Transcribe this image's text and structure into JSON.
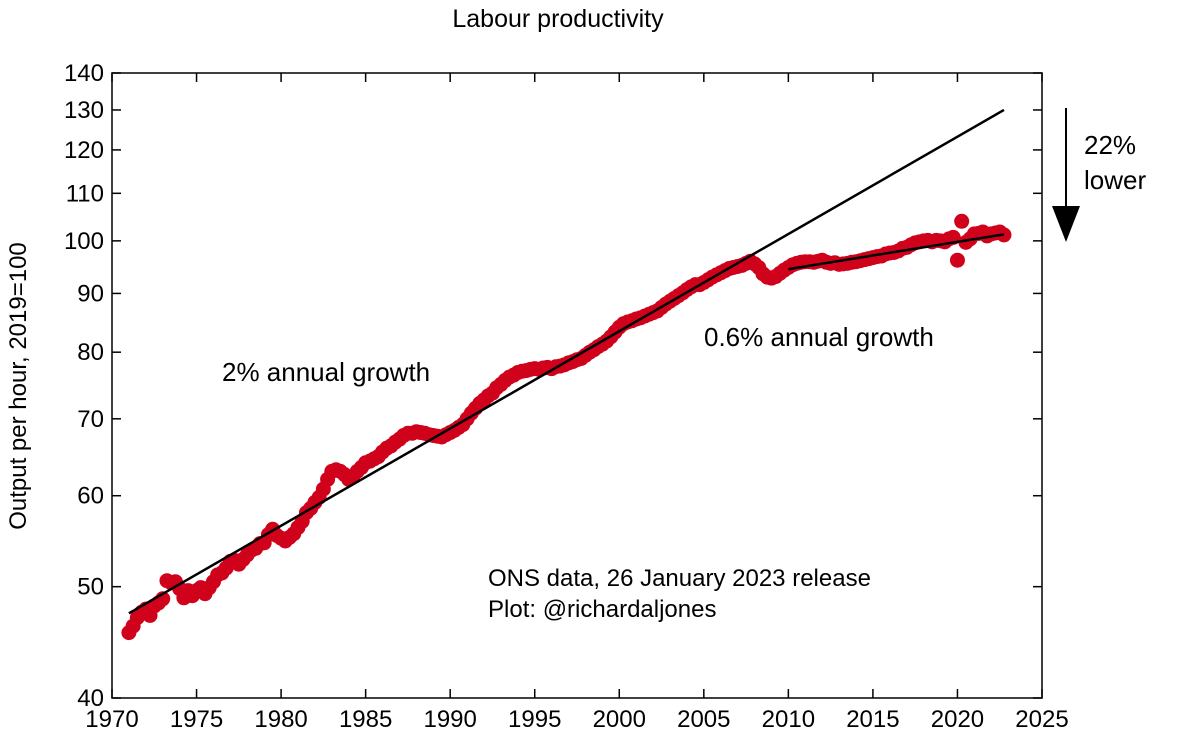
{
  "chart_data": {
    "type": "scatter",
    "title": "Labour productivity",
    "xlabel": "",
    "ylabel": "Output per hour, 2019=100",
    "y_scale": "log",
    "xlim": [
      1970,
      2025
    ],
    "ylim": [
      40,
      140
    ],
    "x_ticks": [
      1970,
      1975,
      1980,
      1985,
      1990,
      1995,
      2000,
      2005,
      2010,
      2015,
      2020,
      2025
    ],
    "y_ticks": [
      40,
      50,
      60,
      70,
      80,
      90,
      100,
      110,
      120,
      130,
      140
    ],
    "grid": false,
    "legend": "none",
    "colors": {
      "points": "#d0021b",
      "lines": "#000000"
    },
    "series": {
      "x": [
        1971.0,
        1971.25,
        1971.5,
        1971.75,
        1972.0,
        1972.25,
        1972.5,
        1972.75,
        1973.0,
        1973.25,
        1973.5,
        1973.75,
        1974.0,
        1974.25,
        1974.5,
        1974.75,
        1975.0,
        1975.25,
        1975.5,
        1975.75,
        1976.0,
        1976.25,
        1976.5,
        1976.75,
        1977.0,
        1977.25,
        1977.5,
        1977.75,
        1978.0,
        1978.25,
        1978.5,
        1978.75,
        1979.0,
        1979.25,
        1979.5,
        1979.75,
        1980.0,
        1980.25,
        1980.5,
        1980.75,
        1981.0,
        1981.25,
        1981.5,
        1981.75,
        1982.0,
        1982.25,
        1982.5,
        1982.75,
        1983.0,
        1983.25,
        1983.5,
        1983.75,
        1984.0,
        1984.25,
        1984.5,
        1984.75,
        1985.0,
        1985.25,
        1985.5,
        1985.75,
        1986.0,
        1986.25,
        1986.5,
        1986.75,
        1987.0,
        1987.25,
        1987.5,
        1987.75,
        1988.0,
        1988.25,
        1988.5,
        1988.75,
        1989.0,
        1989.25,
        1989.5,
        1989.75,
        1990.0,
        1990.25,
        1990.5,
        1990.75,
        1991.0,
        1991.25,
        1991.5,
        1991.75,
        1992.0,
        1992.25,
        1992.5,
        1992.75,
        1993.0,
        1993.25,
        1993.5,
        1993.75,
        1994.0,
        1994.25,
        1994.5,
        1994.75,
        1995.0,
        1995.25,
        1995.5,
        1995.75,
        1996.0,
        1996.25,
        1996.5,
        1996.75,
        1997.0,
        1997.25,
        1997.5,
        1997.75,
        1998.0,
        1998.25,
        1998.5,
        1998.75,
        1999.0,
        1999.25,
        1999.5,
        1999.75,
        2000.0,
        2000.25,
        2000.5,
        2000.75,
        2001.0,
        2001.25,
        2001.5,
        2001.75,
        2002.0,
        2002.25,
        2002.5,
        2002.75,
        2003.0,
        2003.25,
        2003.5,
        2003.75,
        2004.0,
        2004.25,
        2004.5,
        2004.75,
        2005.0,
        2005.25,
        2005.5,
        2005.75,
        2006.0,
        2006.25,
        2006.5,
        2006.75,
        2007.0,
        2007.25,
        2007.5,
        2007.75,
        2008.0,
        2008.25,
        2008.5,
        2008.75,
        2009.0,
        2009.25,
        2009.5,
        2009.75,
        2010.0,
        2010.25,
        2010.5,
        2010.75,
        2011.0,
        2011.25,
        2011.5,
        2011.75,
        2012.0,
        2012.25,
        2012.5,
        2012.75,
        2013.0,
        2013.25,
        2013.5,
        2013.75,
        2014.0,
        2014.25,
        2014.5,
        2014.75,
        2015.0,
        2015.25,
        2015.5,
        2015.75,
        2016.0,
        2016.25,
        2016.5,
        2016.75,
        2017.0,
        2017.25,
        2017.5,
        2017.75,
        2018.0,
        2018.25,
        2018.5,
        2018.75,
        2019.0,
        2019.25,
        2019.5,
        2019.75,
        2020.0,
        2020.25,
        2020.5,
        2020.75,
        2021.0,
        2021.25,
        2021.5,
        2021.75,
        2022.0,
        2022.25,
        2022.5,
        2022.75
      ],
      "y": [
        45.6,
        46.2,
        47.0,
        47.5,
        47.8,
        47.2,
        48.1,
        48.4,
        48.8,
        50.6,
        50.4,
        50.5,
        49.8,
        48.9,
        49.6,
        49.1,
        49.6,
        49.9,
        49.3,
        49.9,
        50.5,
        51.2,
        51.4,
        51.9,
        52.6,
        52.7,
        52.3,
        52.8,
        53.3,
        53.8,
        54.0,
        54.5,
        54.6,
        55.5,
        56.1,
        55.4,
        55.1,
        54.8,
        55.2,
        55.6,
        56.3,
        57.0,
        58.0,
        58.5,
        59.2,
        59.8,
        60.8,
        62.0,
        63.0,
        63.2,
        63.0,
        62.6,
        62.0,
        62.4,
        63.0,
        63.5,
        64.1,
        64.3,
        64.6,
        64.9,
        65.5,
        66.0,
        66.3,
        66.8,
        67.2,
        67.7,
        68.0,
        68.0,
        68.2,
        68.1,
        68.0,
        67.8,
        67.7,
        67.6,
        67.5,
        67.8,
        68.1,
        68.4,
        68.8,
        69.2,
        70.0,
        70.8,
        71.5,
        72.2,
        72.7,
        73.3,
        73.7,
        74.5,
        75.0,
        75.6,
        76.1,
        76.4,
        76.8,
        77.0,
        77.1,
        77.3,
        77.4,
        77.3,
        77.5,
        77.6,
        77.4,
        77.7,
        77.8,
        78.0,
        78.3,
        78.5,
        78.8,
        79.0,
        79.5,
        80.0,
        80.4,
        80.9,
        81.3,
        81.8,
        82.5,
        83.3,
        84.1,
        84.7,
        85.0,
        85.2,
        85.5,
        85.7,
        86.0,
        86.3,
        86.6,
        86.9,
        87.5,
        88.1,
        88.6,
        89.1,
        89.6,
        90.1,
        90.7,
        91.2,
        91.6,
        91.6,
        92.0,
        92.5,
        93.0,
        93.4,
        93.8,
        94.2,
        94.6,
        94.8,
        95.0,
        95.2,
        95.6,
        96.0,
        95.5,
        94.8,
        93.6,
        93.0,
        92.8,
        93.1,
        93.7,
        94.3,
        94.8,
        95.3,
        95.6,
        95.8,
        95.9,
        95.9,
        95.8,
        96.0,
        96.2,
        95.8,
        95.6,
        95.7,
        95.4,
        95.5,
        95.6,
        95.8,
        95.9,
        96.1,
        96.3,
        96.5,
        96.7,
        96.9,
        97.0,
        97.4,
        97.6,
        97.7,
        98.0,
        98.5,
        98.7,
        99.2,
        99.6,
        99.8,
        100.0,
        100.1,
        99.8,
        100.1,
        100.0,
        99.8,
        100.4,
        100.7,
        96.2,
        104.0,
        99.7,
        100.4,
        101.4,
        101.5,
        101.8,
        101.0,
        101.4,
        101.6,
        101.8,
        101.2
      ],
      "names": []
    },
    "trend_lines": [
      {
        "x_start": 1971.0,
        "y_start": 47.4,
        "x_end": 2022.75,
        "y_end": 130.0,
        "label": "2% annual growth"
      },
      {
        "x_start": 2010.0,
        "y_start": 94.5,
        "x_end": 2022.75,
        "y_end": 101.3,
        "label": "0.6% annual growth"
      }
    ],
    "annotations": {
      "gap_arrow": {
        "x": 2026,
        "y_from": 136,
        "y_to": 101.5,
        "line1": "22%",
        "line2": "lower"
      },
      "source_line1": "ONS data, 26 January 2023 release",
      "source_line2": "Plot: @richardaljones"
    }
  }
}
